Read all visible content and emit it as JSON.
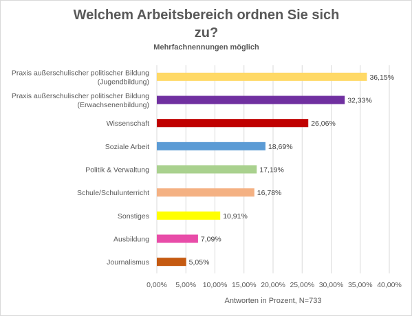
{
  "chart_data": {
    "type": "bar",
    "orientation": "horizontal",
    "title_line1": "Welchem Arbeitsbereich ordnen Sie sich",
    "title_line2": "zu?",
    "subtitle": "Mehrfachnennungen möglich",
    "xlabel": "Antworten  in Prozent, N=733",
    "ylabel": "",
    "xlim": [
      0,
      40
    ],
    "x_ticks": [
      "0,00%",
      "5,00%",
      "10,00%",
      "15,00%",
      "20,00%",
      "25,00%",
      "30,00%",
      "35,00%",
      "40,00%"
    ],
    "grid": "vertical",
    "legend": "none",
    "categories": [
      [
        "Praxis außerschulischer politischer Bildung",
        "(Jugendbildung)"
      ],
      [
        "Praxis außerschulischer politischer Bildung",
        "(Erwachsenenbildung)"
      ],
      [
        "Wissenschaft"
      ],
      [
        "Soziale Arbeit"
      ],
      [
        "Politik & Verwaltung"
      ],
      [
        "Schule/Schulunterricht"
      ],
      [
        "Sonstiges"
      ],
      [
        "Ausbildung"
      ],
      [
        "Journalismus"
      ]
    ],
    "values": [
      36.15,
      32.33,
      26.06,
      18.69,
      17.19,
      16.78,
      10.91,
      7.09,
      5.05
    ],
    "value_labels": [
      "36,15%",
      "32,33%",
      "26,06%",
      "18,69%",
      "17,19%",
      "16,78%",
      "10,91%",
      "7,09%",
      "5,05%"
    ],
    "colors": [
      "#FFD966",
      "#7030A0",
      "#C00000",
      "#5B9BD5",
      "#A9D18E",
      "#F4B183",
      "#FFFF00",
      "#E84CA8",
      "#C55A11"
    ]
  }
}
